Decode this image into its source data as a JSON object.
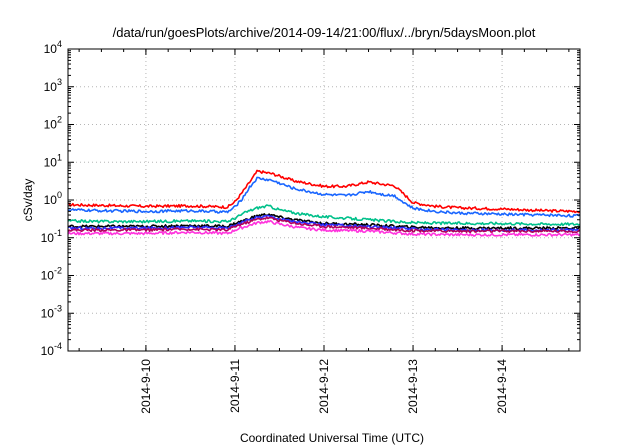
{
  "chart_data": {
    "type": "line",
    "title": "/data/run/goesPlots/archive/2014-09-14/21:00/flux/../bryn/5daysMoon.plot",
    "xlabel": "Coordinated Universal Time (UTC)",
    "ylabel": "cSv/day",
    "x_domain": [
      "2014-09-09T03:00",
      "2014-09-14T21:00"
    ],
    "x_ticks": [
      "2014-9-10",
      "2014-9-11",
      "2014-9-12",
      "2014-9-13",
      "2014-9-14"
    ],
    "y_scale": "log",
    "ylim": [
      0.0001,
      10000
    ],
    "y_ticks": [
      {
        "base": "10",
        "exp": "-4"
      },
      {
        "base": "10",
        "exp": "-3"
      },
      {
        "base": "10",
        "exp": "-2"
      },
      {
        "base": "10",
        "exp": "-1"
      },
      {
        "base": "10",
        "exp": "0"
      },
      {
        "base": "10",
        "exp": "1"
      },
      {
        "base": "10",
        "exp": "2"
      },
      {
        "base": "10",
        "exp": "3"
      },
      {
        "base": "10",
        "exp": "4"
      }
    ],
    "grid": true,
    "series": [
      {
        "color": "#ff0000",
        "x": [
          "2014-09-09T03:00",
          "2014-09-09T12:00",
          "2014-09-10T00:00",
          "2014-09-10T12:00",
          "2014-09-10T22:00",
          "2014-09-11T00:00",
          "2014-09-11T02:00",
          "2014-09-11T04:00",
          "2014-09-11T06:00",
          "2014-09-11T10:00",
          "2014-09-11T16:00",
          "2014-09-12T00:00",
          "2014-09-12T06:00",
          "2014-09-12T12:00",
          "2014-09-12T16:00",
          "2014-09-12T19:00",
          "2014-09-12T22:00",
          "2014-09-13T00:00",
          "2014-09-13T06:00",
          "2014-09-13T12:00",
          "2014-09-14T00:00",
          "2014-09-14T12:00",
          "2014-09-14T21:00"
        ],
        "y": [
          0.75,
          0.72,
          0.68,
          0.7,
          0.65,
          0.9,
          1.6,
          3.0,
          5.8,
          5.0,
          3.2,
          2.3,
          2.3,
          3.0,
          2.6,
          2.4,
          1.3,
          0.85,
          0.68,
          0.62,
          0.58,
          0.52,
          0.5
        ]
      },
      {
        "color": "#1a66ff",
        "x": [
          "2014-09-09T03:00",
          "2014-09-09T12:00",
          "2014-09-10T00:00",
          "2014-09-10T12:00",
          "2014-09-10T22:00",
          "2014-09-11T00:00",
          "2014-09-11T02:00",
          "2014-09-11T04:00",
          "2014-09-11T06:00",
          "2014-09-11T10:00",
          "2014-09-11T16:00",
          "2014-09-12T00:00",
          "2014-09-12T06:00",
          "2014-09-12T12:00",
          "2014-09-12T16:00",
          "2014-09-12T19:00",
          "2014-09-12T22:00",
          "2014-09-13T00:00",
          "2014-09-13T06:00",
          "2014-09-13T12:00",
          "2014-09-14T00:00",
          "2014-09-14T12:00",
          "2014-09-14T21:00"
        ],
        "y": [
          0.55,
          0.52,
          0.5,
          0.52,
          0.48,
          0.65,
          1.1,
          2.2,
          3.8,
          3.3,
          2.0,
          1.4,
          1.3,
          1.7,
          1.4,
          1.3,
          0.8,
          0.6,
          0.5,
          0.45,
          0.42,
          0.4,
          0.38
        ]
      },
      {
        "color": "#00c08a",
        "x": [
          "2014-09-09T03:00",
          "2014-09-09T12:00",
          "2014-09-10T00:00",
          "2014-09-10T12:00",
          "2014-09-10T22:00",
          "2014-09-11T00:00",
          "2014-09-11T03:00",
          "2014-09-11T06:00",
          "2014-09-11T09:00",
          "2014-09-11T12:00",
          "2014-09-11T18:00",
          "2014-09-12T00:00",
          "2014-09-12T12:00",
          "2014-09-13T00:00",
          "2014-09-13T12:00",
          "2014-09-14T00:00",
          "2014-09-14T12:00",
          "2014-09-14T21:00"
        ],
        "y": [
          0.28,
          0.27,
          0.27,
          0.28,
          0.27,
          0.33,
          0.48,
          0.62,
          0.7,
          0.55,
          0.42,
          0.36,
          0.3,
          0.25,
          0.24,
          0.24,
          0.23,
          0.23
        ]
      },
      {
        "color": "#000000",
        "x": [
          "2014-09-09T03:00",
          "2014-09-09T12:00",
          "2014-09-10T00:00",
          "2014-09-10T12:00",
          "2014-09-10T22:00",
          "2014-09-11T00:00",
          "2014-09-11T03:00",
          "2014-09-11T06:00",
          "2014-09-11T09:00",
          "2014-09-11T12:00",
          "2014-09-11T18:00",
          "2014-09-12T00:00",
          "2014-09-12T12:00",
          "2014-09-13T00:00",
          "2014-09-13T12:00",
          "2014-09-14T00:00",
          "2014-09-14T12:00",
          "2014-09-14T21:00"
        ],
        "y": [
          0.2,
          0.2,
          0.2,
          0.21,
          0.2,
          0.24,
          0.3,
          0.38,
          0.42,
          0.35,
          0.28,
          0.24,
          0.22,
          0.19,
          0.18,
          0.18,
          0.18,
          0.18
        ]
      },
      {
        "color": "#2a2aff",
        "x": [
          "2014-09-09T03:00",
          "2014-09-09T12:00",
          "2014-09-10T00:00",
          "2014-09-10T12:00",
          "2014-09-10T22:00",
          "2014-09-11T00:00",
          "2014-09-11T03:00",
          "2014-09-11T06:00",
          "2014-09-11T09:00",
          "2014-09-11T12:00",
          "2014-09-11T18:00",
          "2014-09-12T00:00",
          "2014-09-12T12:00",
          "2014-09-13T00:00",
          "2014-09-13T12:00",
          "2014-09-14T00:00",
          "2014-09-14T12:00",
          "2014-09-14T21:00"
        ],
        "y": [
          0.18,
          0.18,
          0.18,
          0.19,
          0.18,
          0.22,
          0.28,
          0.35,
          0.38,
          0.32,
          0.25,
          0.22,
          0.2,
          0.17,
          0.16,
          0.16,
          0.16,
          0.16
        ]
      },
      {
        "color": "#b0005a",
        "x": [
          "2014-09-09T03:00",
          "2014-09-09T12:00",
          "2014-09-10T00:00",
          "2014-09-10T12:00",
          "2014-09-10T22:00",
          "2014-09-11T00:00",
          "2014-09-11T03:00",
          "2014-09-11T06:00",
          "2014-09-11T09:00",
          "2014-09-11T12:00",
          "2014-09-11T18:00",
          "2014-09-12T00:00",
          "2014-09-12T12:00",
          "2014-09-13T00:00",
          "2014-09-13T12:00",
          "2014-09-14T00:00",
          "2014-09-14T12:00",
          "2014-09-14T21:00"
        ],
        "y": [
          0.16,
          0.16,
          0.16,
          0.17,
          0.16,
          0.2,
          0.25,
          0.31,
          0.34,
          0.29,
          0.23,
          0.2,
          0.18,
          0.155,
          0.15,
          0.15,
          0.15,
          0.15
        ]
      },
      {
        "color": "#ff33dd",
        "x": [
          "2014-09-09T03:00",
          "2014-09-09T12:00",
          "2014-09-10T00:00",
          "2014-09-10T12:00",
          "2014-09-10T22:00",
          "2014-09-11T00:00",
          "2014-09-11T03:00",
          "2014-09-11T06:00",
          "2014-09-11T09:00",
          "2014-09-11T12:00",
          "2014-09-11T18:00",
          "2014-09-12T00:00",
          "2014-09-12T12:00",
          "2014-09-13T00:00",
          "2014-09-13T12:00",
          "2014-09-14T00:00",
          "2014-09-14T12:00",
          "2014-09-14T21:00"
        ],
        "y": [
          0.13,
          0.13,
          0.13,
          0.14,
          0.13,
          0.16,
          0.2,
          0.25,
          0.27,
          0.23,
          0.18,
          0.16,
          0.15,
          0.125,
          0.12,
          0.12,
          0.12,
          0.12
        ]
      }
    ]
  }
}
